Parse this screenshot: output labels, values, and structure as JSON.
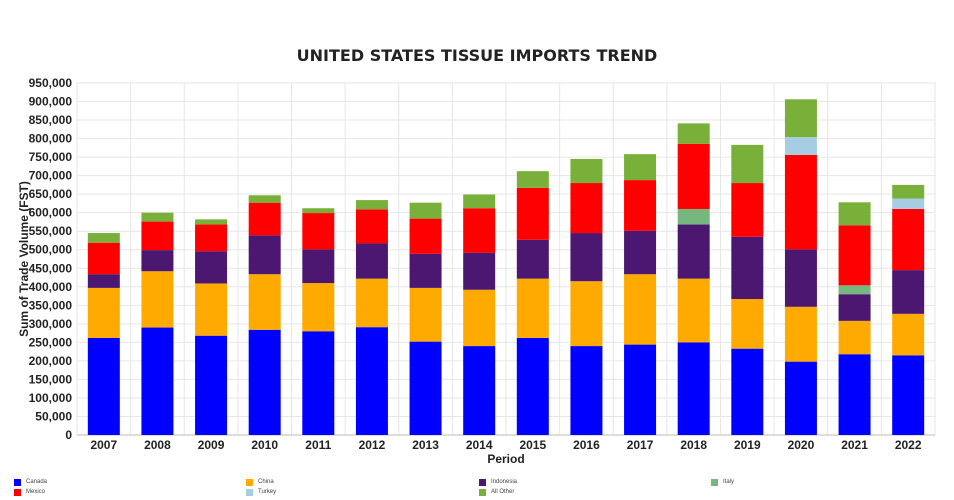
{
  "chart_data": {
    "type": "bar",
    "stacked": true,
    "title": "UNITED STATES TISSUE IMPORTS TREND",
    "xlabel": "Period",
    "ylabel": "Sum of Trade Volume (FST)",
    "ylim": [
      0,
      950000
    ],
    "ytick_step": 50000,
    "grid": true,
    "legend_position": "bottom",
    "categories": [
      "2007",
      "2008",
      "2009",
      "2010",
      "2011",
      "2012",
      "2013",
      "2014",
      "2015",
      "2016",
      "2017",
      "2018",
      "2019",
      "2020",
      "2021",
      "2022"
    ],
    "series": [
      {
        "name": "Canada",
        "color": "#0000ff",
        "values": [
          262000,
          290000,
          268000,
          284000,
          280000,
          291000,
          252000,
          240000,
          262000,
          240000,
          244000,
          250000,
          233000,
          198000,
          218000,
          215000
        ]
      },
      {
        "name": "China",
        "color": "#ffaa00",
        "values": [
          135000,
          152000,
          141000,
          150000,
          130000,
          131000,
          145000,
          152000,
          160000,
          175000,
          190000,
          172000,
          134000,
          148000,
          90000,
          112000
        ]
      },
      {
        "name": "Indonesia",
        "color": "#4b1770",
        "values": [
          37000,
          57000,
          87000,
          105000,
          91000,
          95000,
          92000,
          100000,
          105000,
          130000,
          117000,
          146000,
          168000,
          155000,
          72000,
          118000
        ]
      },
      {
        "name": "Italy",
        "color": "#77b67f",
        "values": [
          0,
          0,
          0,
          0,
          0,
          0,
          0,
          0,
          0,
          0,
          0,
          42000,
          0,
          0,
          24000,
          0
        ]
      },
      {
        "name": "Mexico",
        "color": "#ff0000",
        "values": [
          85000,
          77000,
          72000,
          88000,
          98000,
          92000,
          95000,
          120000,
          140000,
          135000,
          137000,
          176000,
          145000,
          255000,
          162000,
          165000
        ]
      },
      {
        "name": "Turkey",
        "color": "#a6cee3",
        "values": [
          0,
          0,
          0,
          0,
          0,
          0,
          0,
          0,
          0,
          0,
          0,
          0,
          0,
          48000,
          0,
          28000
        ]
      },
      {
        "name": "All Other",
        "color": "#78b03a",
        "values": [
          26000,
          24000,
          14000,
          20000,
          13000,
          25000,
          43000,
          37000,
          45000,
          65000,
          70000,
          55000,
          103000,
          102000,
          62000,
          37000
        ]
      }
    ]
  },
  "legend": {
    "rows": [
      [
        "Canada",
        "China",
        "Indonesia",
        "Italy"
      ],
      [
        "Mexico",
        "Turkey",
        "All Other"
      ]
    ]
  }
}
